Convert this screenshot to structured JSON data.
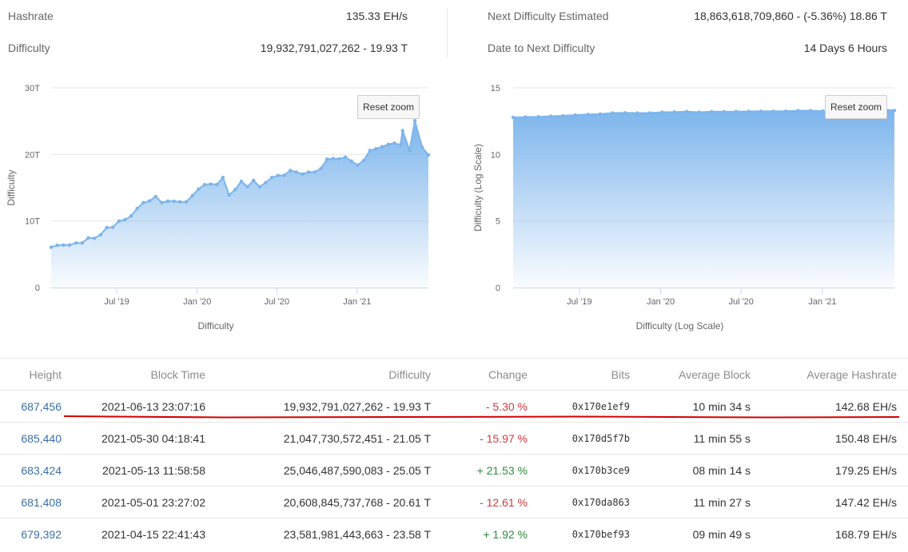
{
  "stats": {
    "hashrate_label": "Hashrate",
    "hashrate_value": "135.33 EH/s",
    "difficulty_label": "Difficulty",
    "difficulty_value": "19,932,791,027,262 - 19.93 T",
    "next_label": "Next Difficulty Estimated",
    "next_value": "18,863,618,709,860 - (-5.36%) 18.86 T",
    "date_label": "Date to Next Difficulty",
    "date_value": "14 Days 6 Hours"
  },
  "charts": {
    "reset_label": "Reset zoom"
  },
  "chart_data": [
    {
      "type": "area",
      "title": "",
      "xlabel": "Difficulty",
      "ylabel": "Difficulty",
      "ylim": [
        0,
        30
      ],
      "xlim": [
        "2019-02-01",
        "2021-06-13"
      ],
      "yticks": [
        "0",
        "10T",
        "20T",
        "30T"
      ],
      "xticks": [
        "Jul '19",
        "Jan '20",
        "Jul '20",
        "Jan '21"
      ],
      "xtick_dates": [
        "2019-07-01",
        "2020-01-01",
        "2020-07-01",
        "2021-01-01"
      ],
      "grid": true,
      "legend": "none",
      "color": "#7cb5ec",
      "series": [
        {
          "x": [
            "2019-02-01",
            "2019-02-15",
            "2019-03-01",
            "2019-03-15",
            "2019-03-30",
            "2019-04-13",
            "2019-04-27",
            "2019-05-11",
            "2019-05-25",
            "2019-06-08",
            "2019-06-22",
            "2019-07-06",
            "2019-07-20",
            "2019-08-03",
            "2019-08-17",
            "2019-08-31",
            "2019-09-14",
            "2019-09-28",
            "2019-10-12",
            "2019-10-26",
            "2019-11-09",
            "2019-11-23",
            "2019-12-07",
            "2019-12-21",
            "2020-01-04",
            "2020-01-18",
            "2020-02-01",
            "2020-02-15",
            "2020-02-29",
            "2020-03-14",
            "2020-03-28",
            "2020-04-11",
            "2020-04-25",
            "2020-05-09",
            "2020-05-23",
            "2020-06-06",
            "2020-06-20",
            "2020-07-04",
            "2020-07-18",
            "2020-08-01",
            "2020-08-15",
            "2020-08-29",
            "2020-09-12",
            "2020-09-26",
            "2020-10-10",
            "2020-10-24",
            "2020-11-07",
            "2020-11-21",
            "2020-12-05",
            "2020-12-19",
            "2021-01-02",
            "2021-01-16",
            "2021-01-30",
            "2021-02-13",
            "2021-02-27",
            "2021-03-13",
            "2021-03-27",
            "2021-04-10",
            "2021-04-15",
            "2021-05-01",
            "2021-05-13",
            "2021-05-30",
            "2021-06-13"
          ],
          "y": [
            6.06,
            6.35,
            6.39,
            6.38,
            6.7,
            6.7,
            7.46,
            7.41,
            7.93,
            9.01,
            9.06,
            9.99,
            10.19,
            10.77,
            11.89,
            12.76,
            13.01,
            13.69,
            12.76,
            12.98,
            12.97,
            12.88,
            12.88,
            13.8,
            14.78,
            15.47,
            15.55,
            15.49,
            16.55,
            13.91,
            14.72,
            15.96,
            15.14,
            16.1,
            15.14,
            15.78,
            16.55,
            16.85,
            16.86,
            17.59,
            17.35,
            17.05,
            17.35,
            17.35,
            17.88,
            19.3,
            19.38,
            19.32,
            19.6,
            19.0,
            18.4,
            19.1,
            20.58,
            20.85,
            21.16,
            21.5,
            21.7,
            21.45,
            23.58,
            20.61,
            25.05,
            21.05,
            19.93
          ]
        }
      ]
    },
    {
      "type": "area",
      "title": "",
      "xlabel": "Difficulty (Log Scale)",
      "ylabel": "Difficulty (Log Scale)",
      "ylim": [
        0,
        15
      ],
      "xlim": [
        "2019-02-01",
        "2021-06-13"
      ],
      "yticks": [
        "0",
        "5",
        "10",
        "15"
      ],
      "xticks": [
        "Jul '19",
        "Jan '20",
        "Jul '20",
        "Jan '21"
      ],
      "xtick_dates": [
        "2019-07-01",
        "2020-01-01",
        "2020-07-01",
        "2021-01-01"
      ],
      "grid": true,
      "legend": "none",
      "color": "#7cb5ec",
      "series": [
        {
          "x": [
            "2019-02-01",
            "2019-03-01",
            "2019-03-30",
            "2019-04-27",
            "2019-05-25",
            "2019-06-22",
            "2019-07-20",
            "2019-08-17",
            "2019-09-14",
            "2019-10-12",
            "2019-11-09",
            "2019-12-07",
            "2020-01-04",
            "2020-02-01",
            "2020-02-29",
            "2020-03-28",
            "2020-04-25",
            "2020-05-23",
            "2020-06-20",
            "2020-07-18",
            "2020-08-15",
            "2020-09-12",
            "2020-10-10",
            "2020-11-07",
            "2020-12-05",
            "2021-01-02",
            "2021-01-30",
            "2021-02-27",
            "2021-03-27",
            "2021-04-15",
            "2021-05-13",
            "2021-06-13"
          ],
          "y": [
            12.78,
            12.81,
            12.83,
            12.87,
            12.9,
            12.96,
            13.0,
            13.03,
            13.11,
            13.12,
            13.11,
            13.11,
            13.17,
            13.19,
            13.22,
            13.17,
            13.21,
            13.21,
            13.22,
            13.23,
            13.24,
            13.24,
            13.25,
            13.29,
            13.29,
            13.26,
            13.31,
            13.33,
            13.34,
            13.37,
            13.4,
            13.3
          ]
        }
      ]
    }
  ],
  "table": {
    "headers": {
      "height": "Height",
      "block_time": "Block Time",
      "difficulty": "Difficulty",
      "change": "Change",
      "bits": "Bits",
      "avg_block": "Average Block",
      "avg_hashrate": "Average Hashrate"
    },
    "rows": [
      {
        "height": "687,456",
        "block_time": "2021-06-13 23:07:16",
        "difficulty": "19,932,791,027,262 - 19.93 T",
        "change": "- 5.30 %",
        "change_dir": "neg",
        "bits": "0x170e1ef9",
        "avg_block": "10 min 34 s",
        "avg_hashrate": "142.68 EH/s"
      },
      {
        "height": "685,440",
        "block_time": "2021-05-30 04:18:41",
        "difficulty": "21,047,730,572,451 - 21.05 T",
        "change": "- 15.97 %",
        "change_dir": "neg",
        "bits": "0x170d5f7b",
        "avg_block": "11 min 55 s",
        "avg_hashrate": "150.48 EH/s"
      },
      {
        "height": "683,424",
        "block_time": "2021-05-13 11:58:58",
        "difficulty": "25,046,487,590,083 - 25.05 T",
        "change": "+ 21.53 %",
        "change_dir": "pos",
        "bits": "0x170b3ce9",
        "avg_block": "08 min 14 s",
        "avg_hashrate": "179.25 EH/s"
      },
      {
        "height": "681,408",
        "block_time": "2021-05-01 23:27:02",
        "difficulty": "20,608,845,737,768 - 20.61 T",
        "change": "- 12.61 %",
        "change_dir": "neg",
        "bits": "0x170da863",
        "avg_block": "11 min 27 s",
        "avg_hashrate": "147.42 EH/s"
      },
      {
        "height": "679,392",
        "block_time": "2021-04-15 22:41:43",
        "difficulty": "23,581,981,443,663 - 23.58 T",
        "change": "+ 1.92 %",
        "change_dir": "pos",
        "bits": "0x170bef93",
        "avg_block": "09 min 49 s",
        "avg_hashrate": "168.79 EH/s"
      }
    ]
  },
  "colors": {
    "link": "#3a6fa8",
    "negative": "#d23a3a",
    "positive": "#2e8b3a",
    "area": "#7cb5ec",
    "underline_annotation": "#d40000"
  }
}
